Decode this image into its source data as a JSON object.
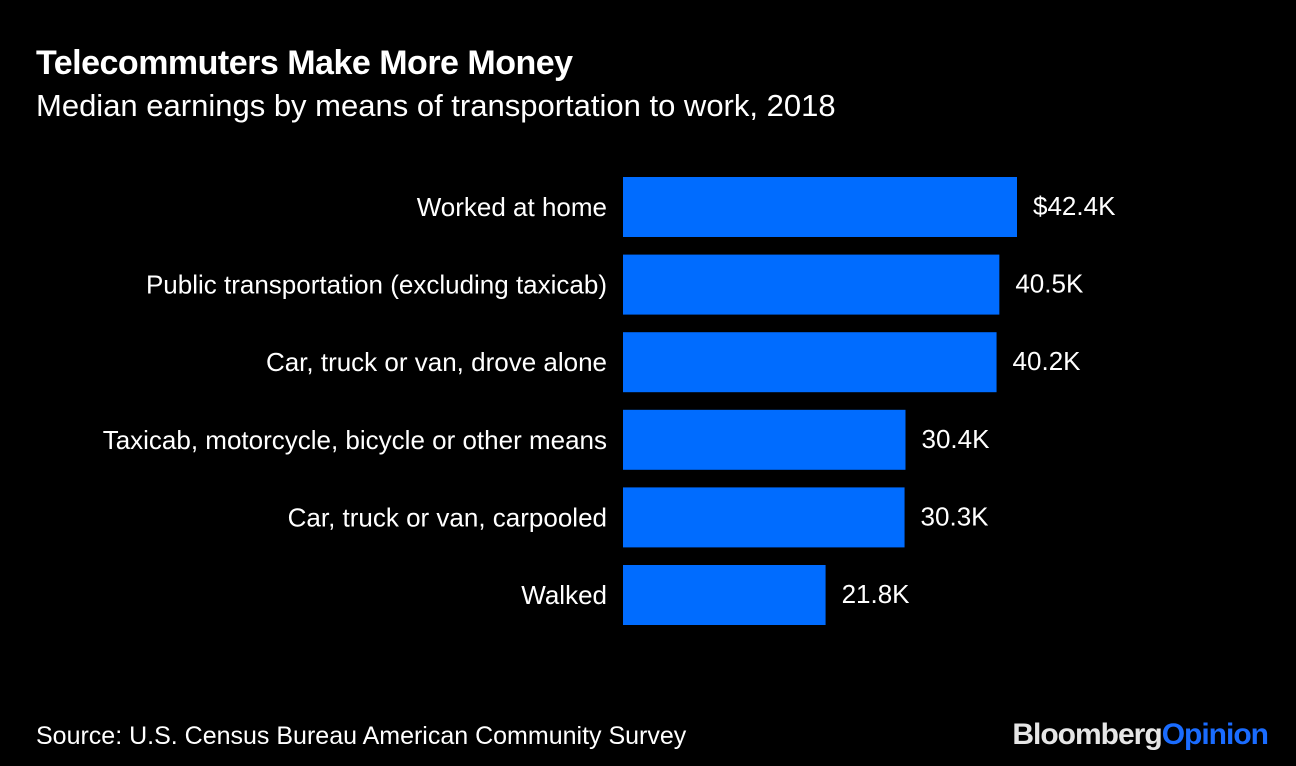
{
  "header": {
    "title": "Telecommuters Make More Money",
    "subtitle": "Median earnings by means of transportation to work, 2018"
  },
  "footer": {
    "source": "Source: U.S. Census Bureau American Community Survey",
    "brand_primary": "Bloomberg",
    "brand_secondary": "Opinion"
  },
  "colors": {
    "background": "#000000",
    "bar": "#006cff",
    "text": "#ffffff"
  },
  "chart_data": {
    "type": "bar",
    "orientation": "horizontal",
    "title": "Telecommuters Make More Money",
    "subtitle": "Median earnings by means of transportation to work, 2018",
    "xlabel": "",
    "ylabel": "",
    "xlim": [
      0,
      42.4
    ],
    "grid": false,
    "legend": "none",
    "categories": [
      "Worked at home",
      "Public transportation (excluding taxicab)",
      "Car, truck or van, drove alone",
      "Taxicab, motorcycle, bicycle or other means",
      "Car, truck or van, carpooled",
      "Walked"
    ],
    "values": [
      42.4,
      40.5,
      40.2,
      30.4,
      30.3,
      21.8
    ],
    "value_labels": [
      "$42.4K",
      "40.5K",
      "40.2K",
      "30.4K",
      "30.3K",
      "21.8K"
    ],
    "unit": "K"
  }
}
